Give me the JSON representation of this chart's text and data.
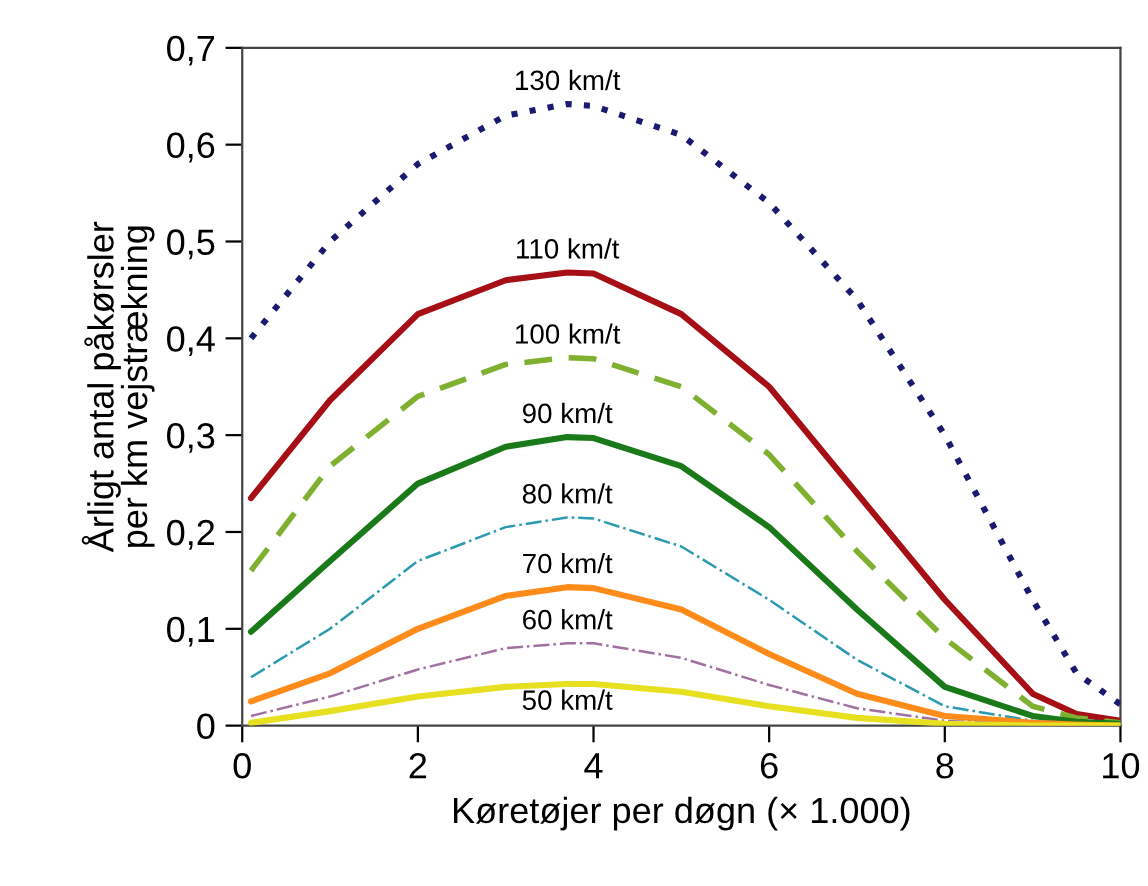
{
  "chart_data": {
    "type": "line",
    "xlabel": "Køretøjer per døgn (× 1.000)",
    "ylabel": "Årligt antal påkørsler\nper km vejstrækning",
    "x": [
      0.1,
      1,
      2,
      3,
      3.7,
      4,
      5,
      6,
      7,
      8,
      9,
      9.5,
      10
    ],
    "series": [
      {
        "name": "130 km/t",
        "color": "#1a1a6e",
        "line_style": "dotted",
        "values": [
          0.4,
          0.5,
          0.58,
          0.63,
          0.642,
          0.64,
          0.61,
          0.54,
          0.44,
          0.3,
          0.13,
          0.054,
          0.022
        ]
      },
      {
        "name": "110 km/t",
        "color": "#a50f15",
        "line_style": "solid",
        "values": [
          0.235,
          0.336,
          0.425,
          0.46,
          0.468,
          0.467,
          0.425,
          0.35,
          0.24,
          0.13,
          0.033,
          0.012,
          0.005
        ]
      },
      {
        "name": "100 km/t",
        "color": "#7fb030",
        "line_style": "dashed",
        "values": [
          0.16,
          0.268,
          0.34,
          0.373,
          0.38,
          0.379,
          0.35,
          0.28,
          0.18,
          0.09,
          0.02,
          0.008,
          0.003
        ]
      },
      {
        "name": "90 km/t",
        "color": "#1a7a1a",
        "line_style": "solid",
        "values": [
          0.097,
          0.17,
          0.25,
          0.288,
          0.298,
          0.297,
          0.268,
          0.205,
          0.12,
          0.04,
          0.01,
          0.004,
          0.002
        ]
      },
      {
        "name": "80 km/t",
        "color": "#2a9ab0",
        "line_style": "dashdot",
        "values": [
          0.05,
          0.1,
          0.17,
          0.205,
          0.215,
          0.214,
          0.185,
          0.13,
          0.068,
          0.02,
          0.005,
          0.002,
          0.001
        ]
      },
      {
        "name": "70 km/t",
        "color": "#ff8c1a",
        "line_style": "solid",
        "values": [
          0.025,
          0.054,
          0.1,
          0.134,
          0.143,
          0.142,
          0.12,
          0.074,
          0.033,
          0.01,
          0.003,
          0.001,
          0
        ]
      },
      {
        "name": "60 km/t",
        "color": "#a070a0",
        "line_style": "dashdot",
        "values": [
          0.01,
          0.03,
          0.058,
          0.08,
          0.085,
          0.085,
          0.07,
          0.042,
          0.018,
          0.005,
          0.001,
          0,
          0
        ]
      },
      {
        "name": "50 km/t",
        "color": "#e6e020",
        "line_style": "solid",
        "values": [
          0.003,
          0.015,
          0.03,
          0.04,
          0.043,
          0.043,
          0.035,
          0.02,
          0.008,
          0.002,
          0,
          0,
          0
        ]
      }
    ],
    "xlim": [
      0,
      10
    ],
    "xticks": [
      0,
      2,
      4,
      6,
      8,
      10
    ],
    "ylim": [
      0,
      0.7
    ],
    "yticks": [
      0,
      {
        "value": 0.1,
        "label": "0,1"
      },
      {
        "value": 0.2,
        "label": "0,2"
      },
      {
        "value": 0.3,
        "label": "0,3"
      },
      {
        "value": 0.4,
        "label": "0,4"
      },
      {
        "value": 0.5,
        "label": "0,5"
      },
      {
        "value": 0.6,
        "label": "0,6"
      },
      {
        "value": 0.7,
        "label": "0,7"
      }
    ],
    "grid": false,
    "legend": false
  }
}
